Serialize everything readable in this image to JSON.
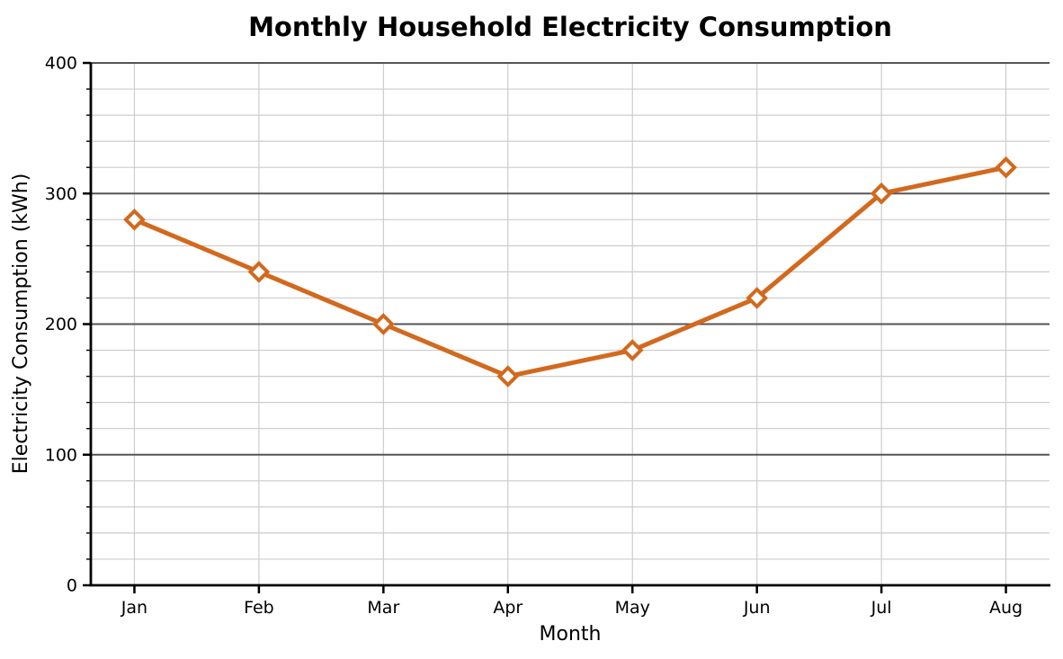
{
  "chart_data": {
    "type": "line",
    "title": "Monthly Household Electricity Consumption",
    "xlabel": "Month",
    "ylabel": "Electricity Consumption (kWh)",
    "categories": [
      "Jan",
      "Feb",
      "Mar",
      "Apr",
      "May",
      "Jun",
      "Jul",
      "Aug"
    ],
    "series": [
      {
        "name": "Electricity Consumption (kWh)",
        "values": [
          280,
          240,
          200,
          160,
          180,
          220,
          300,
          320
        ]
      }
    ],
    "ylim": [
      0,
      400
    ],
    "y_major_ticks": [
      0,
      100,
      200,
      300,
      400
    ],
    "y_minor_step": 20,
    "grid": "major-and-minor",
    "legend_position": "none",
    "marker": "open-diamond",
    "colors": {
      "line": "#D2691E",
      "marker_edge": "#D2691E",
      "marker_face": "#FFFFFF",
      "major_grid": "#555555",
      "minor_grid": "#CCCCCC",
      "spine": "#000000",
      "text": "#000000",
      "background": "#FFFFFF"
    }
  }
}
